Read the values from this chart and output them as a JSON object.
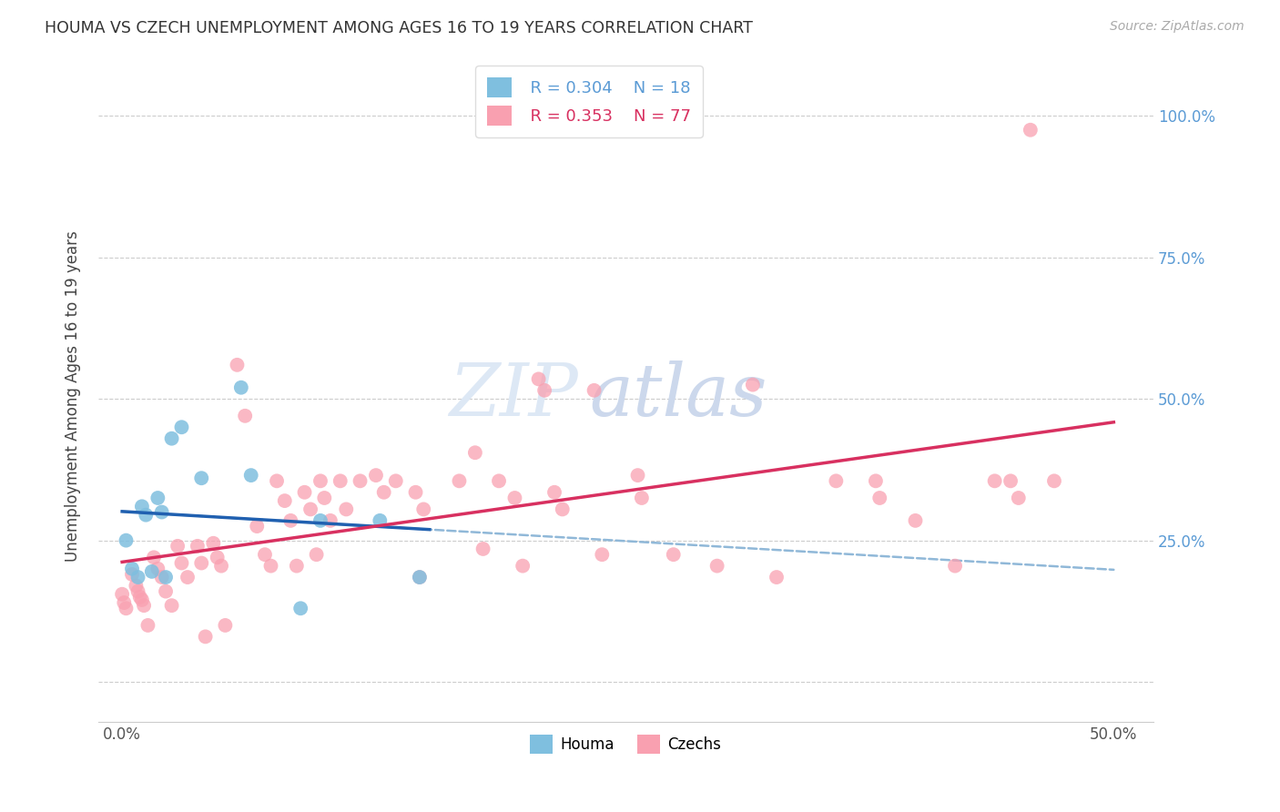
{
  "title": "HOUMA VS CZECH UNEMPLOYMENT AMONG AGES 16 TO 19 YEARS CORRELATION CHART",
  "source": "Source: ZipAtlas.com",
  "ylabel": "Unemployment Among Ages 16 to 19 years",
  "y_ticks": [
    0.0,
    0.25,
    0.5,
    0.75,
    1.0
  ],
  "y_tick_labels": [
    "",
    "25.0%",
    "50.0%",
    "75.0%",
    "100.0%"
  ],
  "x_ticks": [
    0.0,
    0.1,
    0.2,
    0.3,
    0.4,
    0.5
  ],
  "x_tick_labels": [
    "0.0%",
    "",
    "",
    "",
    "",
    "50.0%"
  ],
  "houma_color": "#7fbfdf",
  "czech_color": "#f9a0b0",
  "houma_line_color": "#2060b0",
  "czech_line_color": "#d83060",
  "dashed_line_color": "#90b8d8",
  "watermark_zip": "ZIP",
  "watermark_atlas": "atlas",
  "legend_houma_R": "0.304",
  "legend_houma_N": "18",
  "legend_czech_R": "0.353",
  "legend_czech_N": "77",
  "houma_x": [
    0.002,
    0.005,
    0.008,
    0.01,
    0.012,
    0.015,
    0.018,
    0.02,
    0.022,
    0.025,
    0.03,
    0.04,
    0.06,
    0.065,
    0.09,
    0.1,
    0.13,
    0.15
  ],
  "houma_y": [
    0.25,
    0.2,
    0.185,
    0.31,
    0.295,
    0.195,
    0.325,
    0.3,
    0.185,
    0.43,
    0.45,
    0.36,
    0.52,
    0.365,
    0.13,
    0.285,
    0.285,
    0.185
  ],
  "czech_x": [
    0.0,
    0.001,
    0.002,
    0.005,
    0.007,
    0.008,
    0.009,
    0.01,
    0.011,
    0.013,
    0.016,
    0.018,
    0.02,
    0.022,
    0.025,
    0.028,
    0.03,
    0.033,
    0.038,
    0.04,
    0.042,
    0.046,
    0.048,
    0.05,
    0.052,
    0.058,
    0.062,
    0.068,
    0.072,
    0.075,
    0.078,
    0.082,
    0.085,
    0.088,
    0.092,
    0.095,
    0.098,
    0.1,
    0.102,
    0.105,
    0.11,
    0.113,
    0.12,
    0.128,
    0.132,
    0.138,
    0.148,
    0.152,
    0.17,
    0.178,
    0.182,
    0.19,
    0.198,
    0.202,
    0.21,
    0.213,
    0.218,
    0.222,
    0.238,
    0.242,
    0.26,
    0.262,
    0.278,
    0.3,
    0.318,
    0.33,
    0.36,
    0.38,
    0.382,
    0.4,
    0.42,
    0.44,
    0.448,
    0.452,
    0.458,
    0.47,
    0.15
  ],
  "czech_y": [
    0.155,
    0.14,
    0.13,
    0.19,
    0.17,
    0.16,
    0.15,
    0.145,
    0.135,
    0.1,
    0.22,
    0.2,
    0.185,
    0.16,
    0.135,
    0.24,
    0.21,
    0.185,
    0.24,
    0.21,
    0.08,
    0.245,
    0.22,
    0.205,
    0.1,
    0.56,
    0.47,
    0.275,
    0.225,
    0.205,
    0.355,
    0.32,
    0.285,
    0.205,
    0.335,
    0.305,
    0.225,
    0.355,
    0.325,
    0.285,
    0.355,
    0.305,
    0.355,
    0.365,
    0.335,
    0.355,
    0.335,
    0.305,
    0.355,
    0.405,
    0.235,
    0.355,
    0.325,
    0.205,
    0.535,
    0.515,
    0.335,
    0.305,
    0.515,
    0.225,
    0.365,
    0.325,
    0.225,
    0.205,
    0.525,
    0.185,
    0.355,
    0.355,
    0.325,
    0.285,
    0.205,
    0.355,
    0.355,
    0.325,
    0.975,
    0.355,
    0.185
  ],
  "xlim": [
    -0.012,
    0.52
  ],
  "ylim": [
    -0.07,
    1.08
  ],
  "houma_line_x0": 0.0,
  "houma_line_x1": 0.155,
  "dashed_line_x0": 0.0,
  "dashed_line_x1": 0.5
}
